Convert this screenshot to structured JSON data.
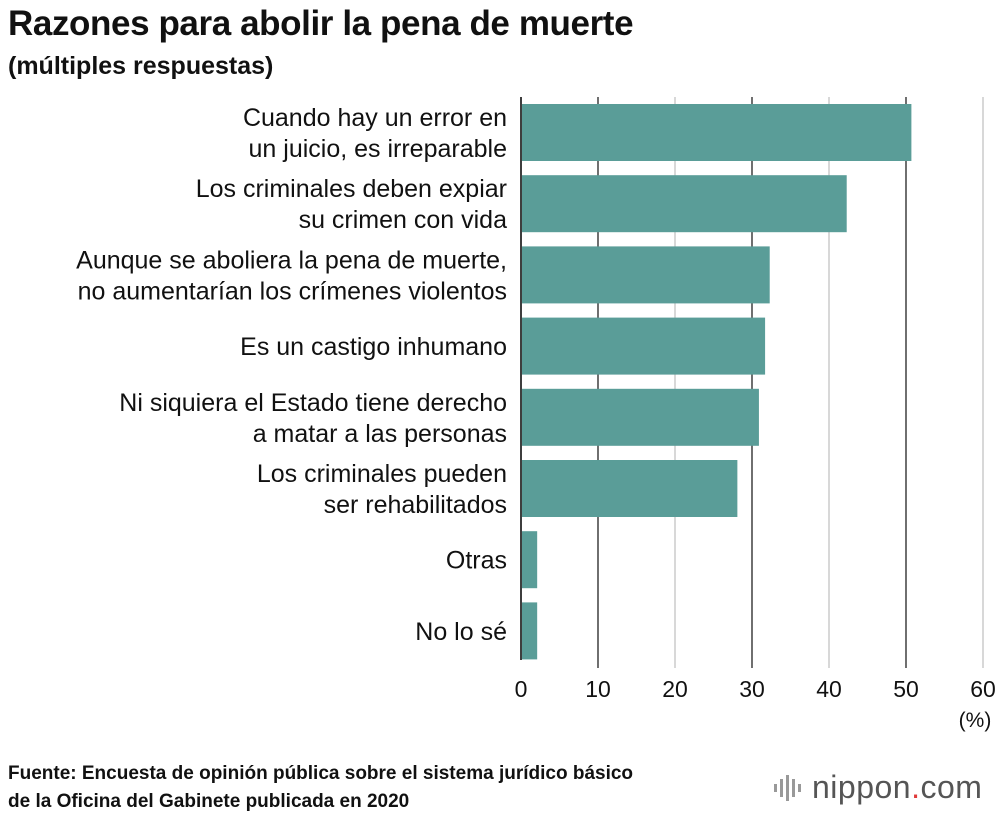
{
  "title": "Razones para abolir la pena de muerte",
  "subtitle": "(múltiples respuestas)",
  "chart_data": {
    "type": "bar",
    "orientation": "horizontal",
    "categories": [
      [
        "Cuando hay un error en",
        "un juicio, es irreparable"
      ],
      [
        "Los criminales deben expiar",
        "su crimen con vida"
      ],
      [
        "Aunque se aboliera la pena de muerte,",
        "no aumentarían los crímenes violentos"
      ],
      [
        "Es un castigo inhumano"
      ],
      [
        "Ni siquiera el Estado tiene derecho",
        "a matar a las personas"
      ],
      [
        "Los criminales pueden",
        "ser rehabilitados"
      ],
      [
        "Otras"
      ],
      [
        "No lo sé"
      ]
    ],
    "values": [
      50.7,
      42.3,
      32.3,
      31.7,
      30.9,
      28.1,
      2.1,
      2.1
    ],
    "xlim": [
      0,
      60
    ],
    "ticks": [
      0,
      10,
      20,
      30,
      40,
      50,
      60
    ],
    "unit_label": "(%)",
    "bar_color": "#5a9d98",
    "grid": true
  },
  "source": [
    "Fuente: Encuesta de opinión pública sobre el sistema jurídico básico",
    "de la Oficina del Gabinete publicada en 2020"
  ],
  "logo": {
    "main": "nippon",
    "dot": ".",
    "tld": "com",
    "dot_color": "#e03a3a",
    "icon": "nippon-logo-icon"
  }
}
